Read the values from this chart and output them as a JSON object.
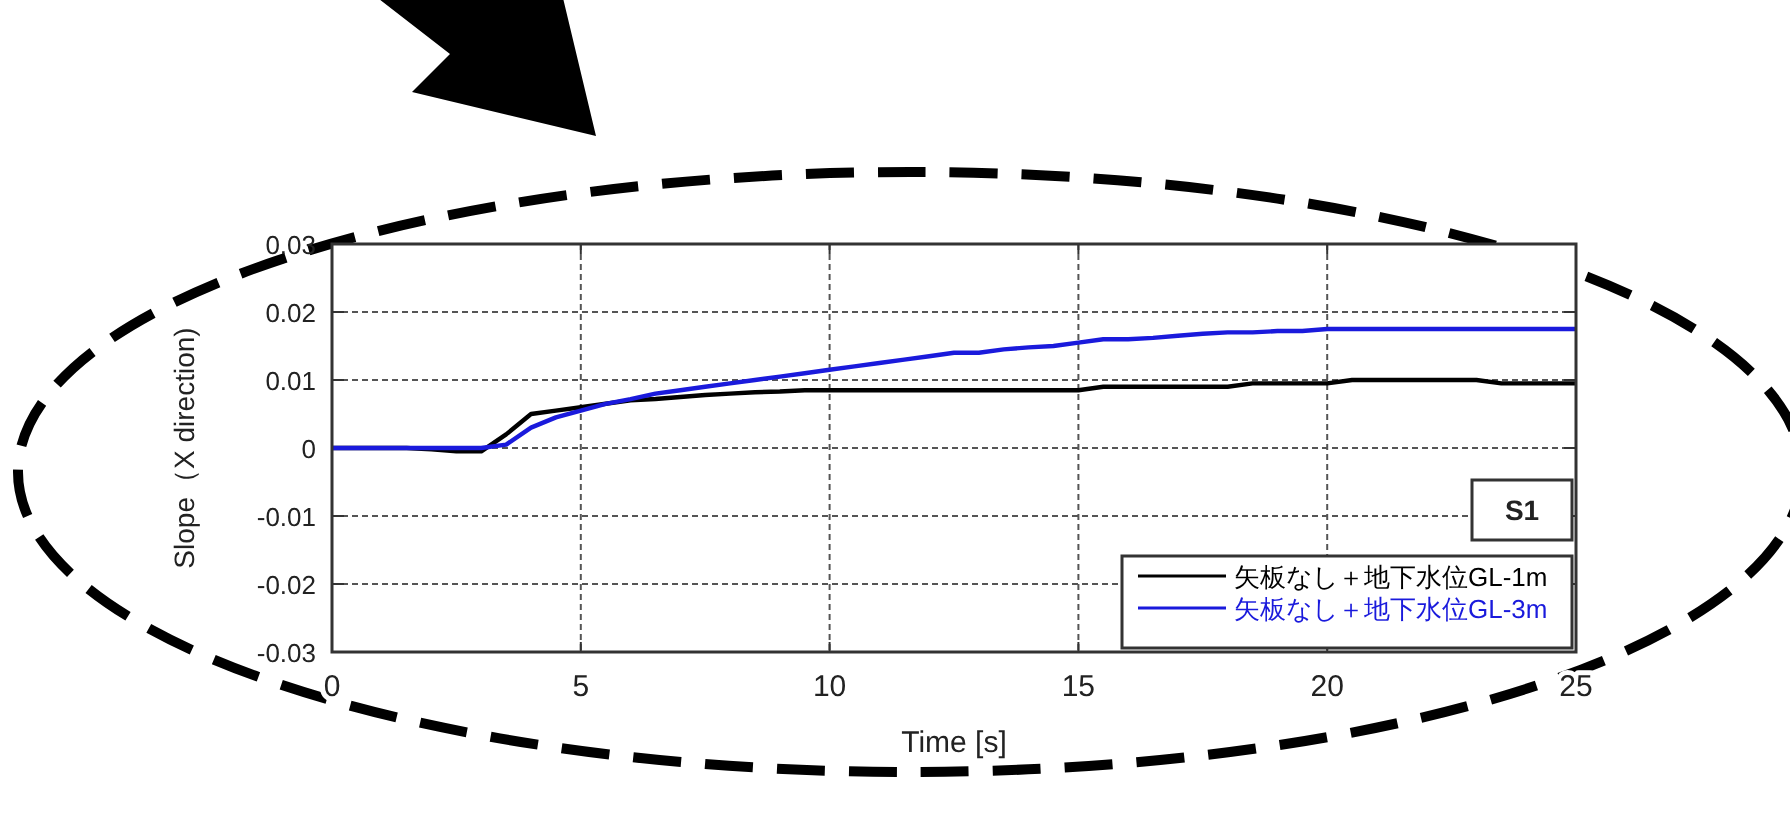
{
  "chart_data": {
    "type": "line",
    "xlabel": "Time [s]",
    "ylabel": "Slope（X direction)",
    "xlim": [
      0,
      25
    ],
    "ylim": [
      -0.03,
      0.03
    ],
    "xticks": [
      0,
      5,
      10,
      15,
      20,
      25
    ],
    "yticks": [
      -0.03,
      -0.02,
      -0.01,
      0,
      0.01,
      0.02,
      0.03
    ],
    "grid": true,
    "legend": "bottom right",
    "annotations": [
      "S1"
    ],
    "x": [
      0,
      0.5,
      1,
      1.5,
      2,
      2.5,
      3,
      3.5,
      4,
      4.5,
      5,
      5.5,
      6,
      6.5,
      7,
      7.5,
      8,
      8.5,
      9,
      9.5,
      10,
      10.5,
      11,
      11.5,
      12,
      12.5,
      13,
      13.5,
      14,
      14.5,
      15,
      15.5,
      16,
      16.5,
      17,
      17.5,
      18,
      18.5,
      19,
      19.5,
      20,
      20.5,
      21,
      21.5,
      22,
      22.5,
      23,
      23.5,
      24,
      24.5,
      25
    ],
    "series": [
      {
        "name": "矢板なし＋地下水位GL-1m",
        "color": "#000000",
        "values": [
          0,
          0,
          0,
          0,
          -0.0002,
          -0.0005,
          -0.0005,
          0.002,
          0.005,
          0.0055,
          0.006,
          0.0065,
          0.007,
          0.0072,
          0.0075,
          0.0078,
          0.008,
          0.0082,
          0.0083,
          0.0085,
          0.0085,
          0.0085,
          0.0085,
          0.0085,
          0.0085,
          0.0085,
          0.0085,
          0.0085,
          0.0085,
          0.0085,
          0.0085,
          0.009,
          0.009,
          0.009,
          0.009,
          0.009,
          0.009,
          0.0095,
          0.0095,
          0.0095,
          0.0095,
          0.01,
          0.01,
          0.01,
          0.01,
          0.01,
          0.01,
          0.0095,
          0.0095,
          0.0095,
          0.0095
        ]
      },
      {
        "name": "矢板なし＋地下水位GL-3m",
        "color": "#1a1adc",
        "values": [
          0,
          0,
          0,
          0,
          0,
          0,
          0,
          0.0005,
          0.003,
          0.0045,
          0.0055,
          0.0065,
          0.0072,
          0.008,
          0.0085,
          0.009,
          0.0095,
          0.01,
          0.0105,
          0.011,
          0.0115,
          0.012,
          0.0125,
          0.013,
          0.0135,
          0.014,
          0.014,
          0.0145,
          0.0148,
          0.015,
          0.0155,
          0.016,
          0.016,
          0.0162,
          0.0165,
          0.0168,
          0.017,
          0.017,
          0.0172,
          0.0172,
          0.0175,
          0.0175,
          0.0175,
          0.0175,
          0.0175,
          0.0175,
          0.0175,
          0.0175,
          0.0175,
          0.0175,
          0.0175
        ]
      }
    ]
  }
}
